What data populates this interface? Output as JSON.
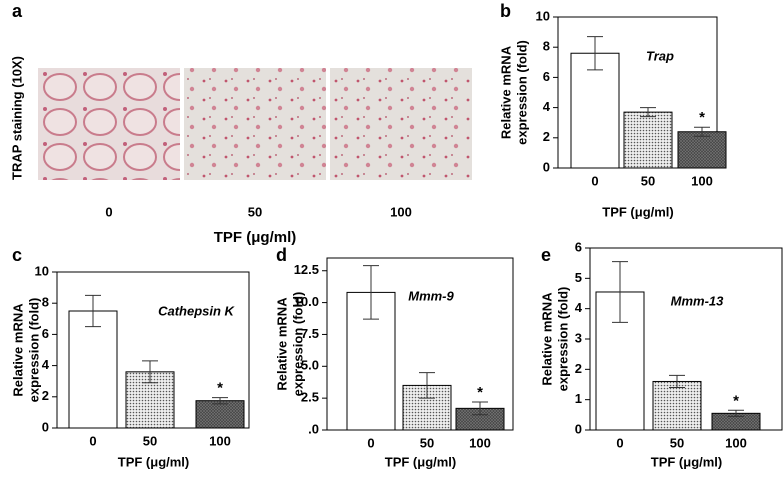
{
  "panel_a": {
    "panel": "a",
    "ylabel": "TRAP staining (10X)",
    "categories": [
      "0",
      "50",
      "100"
    ],
    "xlabel": "TPF (μg/ml)"
  },
  "chart_data": [
    {
      "type": "bar",
      "panel": "b",
      "label": "Trap",
      "categories": [
        "0",
        "50",
        "100"
      ],
      "values": [
        7.6,
        3.7,
        2.4
      ],
      "errors": [
        1.1,
        0.3,
        0.3
      ],
      "markers": [
        null,
        null,
        "*"
      ],
      "fills": [
        "white",
        "dots",
        "crosshatch"
      ],
      "ylim": [
        0,
        10
      ],
      "yticks": [
        0,
        2,
        4,
        6,
        8,
        10
      ],
      "ylabel": [
        "Relative mRNA",
        "expression (fold)"
      ],
      "xlabel": "TPF (μg/ml)"
    },
    {
      "type": "bar",
      "panel": "c",
      "label": "Cathepsin K",
      "categories": [
        "0",
        "50",
        "100"
      ],
      "values": [
        7.5,
        3.6,
        1.75
      ],
      "errors": [
        1.0,
        0.7,
        0.2
      ],
      "markers": [
        null,
        null,
        "*"
      ],
      "fills": [
        "white",
        "dots",
        "crosshatch"
      ],
      "ylim": [
        0,
        10
      ],
      "yticks": [
        0,
        2,
        4,
        6,
        8,
        10
      ],
      "ylabel": [
        "Relative mRNA",
        "expression (fold)"
      ],
      "xlabel": "TPF (μg/ml)"
    },
    {
      "type": "bar",
      "panel": "d",
      "label": "Mmm-9",
      "categories": [
        "0",
        "50",
        "100"
      ],
      "values": [
        10.8,
        3.5,
        1.7
      ],
      "errors": [
        2.1,
        1.0,
        0.5
      ],
      "markers": [
        null,
        null,
        "*"
      ],
      "fills": [
        "white",
        "dots",
        "crosshatch"
      ],
      "ylim": [
        0,
        13.5
      ],
      "yticks": [
        {
          "value": 0,
          "label": ".0"
        },
        2.5,
        {
          "value": 5,
          "label": "5.0"
        },
        7.5,
        {
          "value": 10,
          "label": "10.0"
        },
        12.5
      ],
      "ylabel": [
        "Relative mRNA",
        "expression (fold)"
      ],
      "xlabel": "TPF (μg/ml)"
    },
    {
      "type": "bar",
      "panel": "e",
      "label": "Mmm-13",
      "categories": [
        "0",
        "50",
        "100"
      ],
      "values": [
        4.55,
        1.6,
        0.55
      ],
      "errors": [
        1.0,
        0.2,
        0.1
      ],
      "markers": [
        null,
        null,
        "*"
      ],
      "fills": [
        "white",
        "dots",
        "crosshatch"
      ],
      "ylim": [
        0,
        6
      ],
      "yticks": [
        0,
        1,
        2,
        3,
        4,
        5,
        6
      ],
      "ylabel": [
        "Relative mRNA",
        "expression (fold)"
      ],
      "xlabel": "TPF (μg/ml)"
    }
  ]
}
